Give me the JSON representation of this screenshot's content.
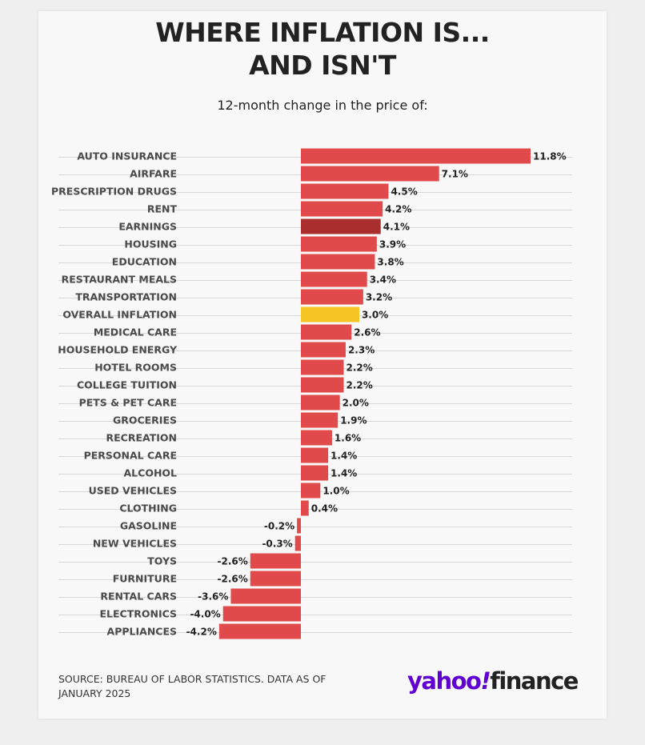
{
  "title_line1": "WHERE INFLATION IS...",
  "title_line2": "AND ISN'T",
  "subtitle": "12-month change in the price of:",
  "source": "SOURCE: BUREAU OF LABOR STATISTICS. DATA AS OF JANUARY 2025",
  "brand": {
    "yahoo": "yahoo",
    "bang": "!",
    "finance": "finance"
  },
  "colors": {
    "bar": "#e04a4a",
    "earnings": "#ab2e2e",
    "overall": "#f5c523",
    "grid": "#d8d8d8",
    "brand_purple": "#6001d2"
  },
  "chart_data": {
    "type": "bar",
    "orientation": "horizontal",
    "title": "WHERE INFLATION IS... AND ISN'T",
    "subtitle": "12-month change in the price of:",
    "unit": "%",
    "xlim": [
      -4.2,
      11.8
    ],
    "categories": [
      "AUTO INSURANCE",
      "AIRFARE",
      "PRESCRIPTION DRUGS",
      "RENT",
      "EARNINGS",
      "HOUSING",
      "EDUCATION",
      "RESTAURANT MEALS",
      "TRANSPORTATION",
      "OVERALL INFLATION",
      "MEDICAL CARE",
      "HOUSEHOLD ENERGY",
      "HOTEL ROOMS",
      "COLLEGE TUITION",
      "PETS & PET CARE",
      "GROCERIES",
      "RECREATION",
      "PERSONAL CARE",
      "ALCOHOL",
      "USED VEHICLES",
      "CLOTHING",
      "GASOLINE",
      "NEW VEHICLES",
      "TOYS",
      "FURNITURE",
      "RENTAL CARS",
      "ELECTRONICS",
      "APPLIANCES"
    ],
    "values": [
      11.8,
      7.1,
      4.5,
      4.2,
      4.1,
      3.9,
      3.8,
      3.4,
      3.2,
      3.0,
      2.6,
      2.3,
      2.2,
      2.2,
      2.0,
      1.9,
      1.6,
      1.4,
      1.4,
      1.0,
      0.4,
      -0.2,
      -0.3,
      -2.6,
      -2.6,
      -3.6,
      -4.0,
      -4.2
    ],
    "labels": [
      "11.8%",
      "7.1%",
      "4.5%",
      "4.2%",
      "4.1%",
      "3.9%",
      "3.8%",
      "3.4%",
      "3.2%",
      "3.0%",
      "2.6%",
      "2.3%",
      "2.2%",
      "2.2%",
      "2.0%",
      "1.9%",
      "1.6%",
      "1.4%",
      "1.4%",
      "1.0%",
      "0.4%",
      "-0.2%",
      "-0.3%",
      "-2.6%",
      "-2.6%",
      "-3.6%",
      "-4.0%",
      "-4.2%"
    ],
    "highlights": {
      "EARNINGS": "earnings",
      "OVERALL INFLATION": "overall"
    }
  }
}
